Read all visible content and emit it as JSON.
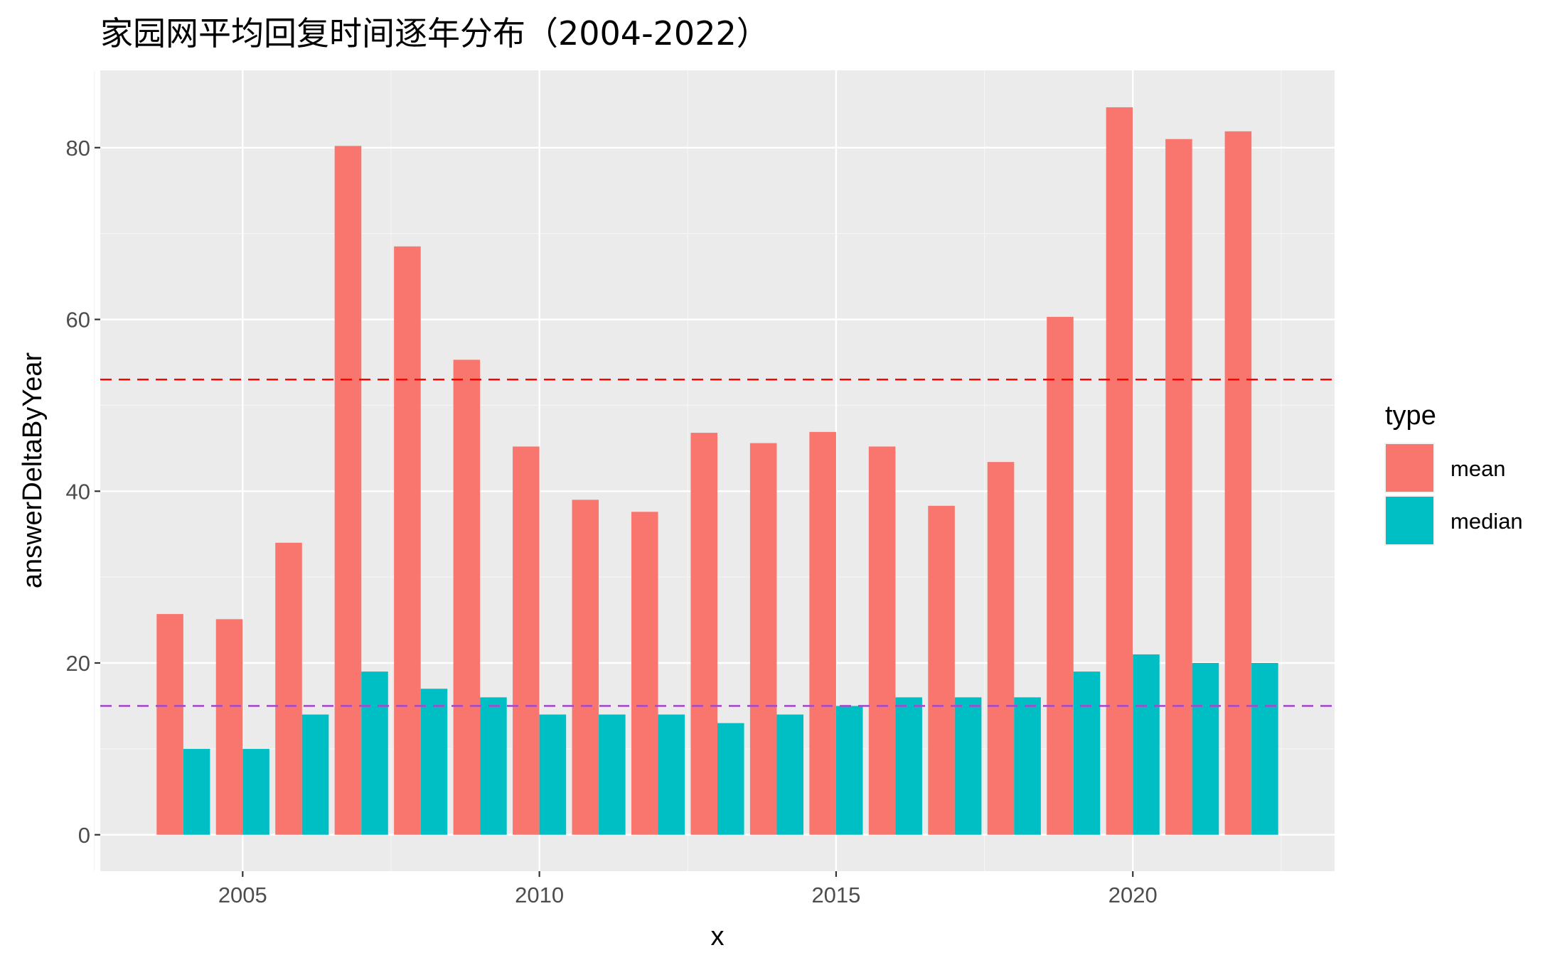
{
  "chart_data": {
    "type": "bar",
    "title": "家园网平均回复时间逐年分布（2004-2022）",
    "xlabel": "x",
    "ylabel": "answerDeltaByYear",
    "categories": [
      2004,
      2005,
      2006,
      2007,
      2008,
      2009,
      2010,
      2011,
      2012,
      2013,
      2014,
      2015,
      2016,
      2017,
      2018,
      2019,
      2020,
      2021,
      2022
    ],
    "series": [
      {
        "name": "mean",
        "color": "#F8766D",
        "values": [
          25.7,
          25.1,
          34.0,
          80.2,
          68.5,
          55.3,
          45.2,
          39.0,
          37.6,
          46.8,
          45.6,
          46.9,
          45.2,
          38.3,
          43.4,
          60.3,
          84.7,
          81.0,
          81.9
        ]
      },
      {
        "name": "median",
        "color": "#00BFC4",
        "values": [
          10,
          10,
          14,
          19,
          17,
          16,
          14,
          14,
          14,
          13,
          14,
          15,
          16,
          16,
          16,
          19,
          21,
          20,
          20
        ]
      }
    ],
    "reference_lines": [
      {
        "y": 53.0,
        "color": "#FF0000",
        "style": "dashed"
      },
      {
        "y": 15.0,
        "color": "#A64AC9",
        "style": "dashed"
      }
    ],
    "xlim": [
      2002.6,
      2023.4
    ],
    "ylim": [
      -4.24,
      89.0
    ],
    "x_ticks": [
      2005,
      2010,
      2015,
      2020
    ],
    "y_ticks": [
      0,
      20,
      40,
      60,
      80
    ],
    "grid": true,
    "legend": {
      "title": "type",
      "position": "right",
      "entries": [
        "mean",
        "median"
      ]
    },
    "colors": {
      "panel": "#EBEBEB",
      "grid_major": "#FFFFFF",
      "grid_minor": "#F5F5F5"
    }
  }
}
